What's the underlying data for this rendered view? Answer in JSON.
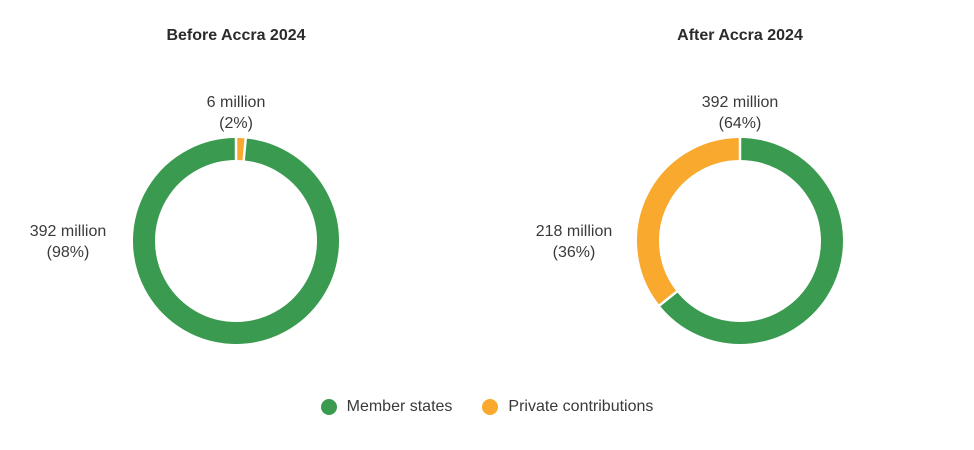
{
  "chart_data": [
    {
      "type": "pie",
      "title": "Before Accra 2024",
      "series": [
        {
          "name": "Member states",
          "value": 392,
          "label": "392 million",
          "pct_label": "(98%)",
          "color": "#3a9a4f"
        },
        {
          "name": "Private contributions",
          "value": 6,
          "label": "6 million",
          "pct_label": "(2%)",
          "color": "#f8a92e"
        }
      ]
    },
    {
      "type": "pie",
      "title": "After Accra 2024",
      "series": [
        {
          "name": "Member states",
          "value": 392,
          "label": "392 million",
          "pct_label": "(64%)",
          "color": "#3a9a4f"
        },
        {
          "name": "Private contributions",
          "value": 218,
          "label": "218 million",
          "pct_label": "(36%)",
          "color": "#f8a92e"
        }
      ]
    }
  ],
  "legend": {
    "items": [
      {
        "label": "Member states",
        "color": "#3a9a4f"
      },
      {
        "label": "Private contributions",
        "color": "#f8a92e"
      }
    ]
  }
}
